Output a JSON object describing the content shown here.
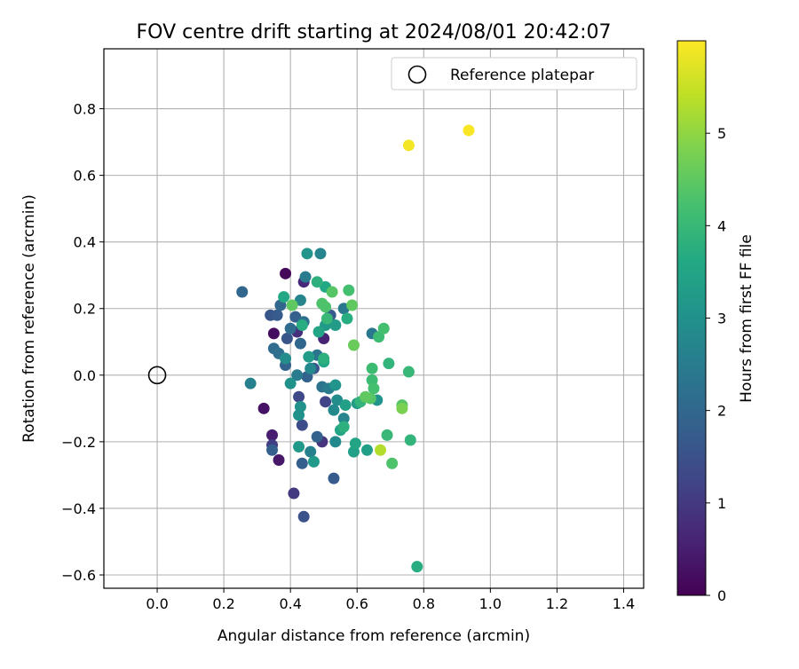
{
  "chart_data": {
    "type": "scatter",
    "title": "FOV centre drift starting at 2024/08/01 20:42:07",
    "xlabel": "Angular distance from reference (arcmin)",
    "ylabel": "Rotation from reference (arcmin)",
    "xlim": [
      -0.16,
      1.46
    ],
    "ylim": [
      -0.64,
      0.98
    ],
    "xticks": [
      "0.0",
      "0.2",
      "0.4",
      "0.6",
      "0.8",
      "1.0",
      "1.2",
      "1.4"
    ],
    "xtick_values": [
      0.0,
      0.2,
      0.4,
      0.6,
      0.8,
      1.0,
      1.2,
      1.4
    ],
    "yticks": [
      "−0.6",
      "−0.4",
      "−0.2",
      "0.0",
      "0.2",
      "0.4",
      "0.6",
      "0.8"
    ],
    "ytick_values": [
      -0.6,
      -0.4,
      -0.2,
      0.0,
      0.2,
      0.4,
      0.6,
      0.8
    ],
    "grid": true,
    "legend": {
      "placement": "top-right",
      "entries": [
        {
          "label": "Reference platepar",
          "marker": "open-circle"
        }
      ]
    },
    "reference_point": {
      "x": 0.0,
      "y": 0.0
    },
    "colorbar": {
      "label": "Hours from first FF file",
      "colormap": "viridis",
      "range": [
        0,
        6
      ],
      "ticks": [
        "0",
        "1",
        "2",
        "3",
        "4",
        "5"
      ],
      "tick_values": [
        0,
        1,
        2,
        3,
        4,
        5
      ]
    },
    "points": [
      {
        "x": 0.385,
        "y": 0.305,
        "c": 0.1
      },
      {
        "x": 0.35,
        "y": 0.125,
        "c": 0.2
      },
      {
        "x": 0.32,
        "y": -0.1,
        "c": 0.3
      },
      {
        "x": 0.365,
        "y": -0.255,
        "c": 0.4
      },
      {
        "x": 0.345,
        "y": -0.18,
        "c": 0.5
      },
      {
        "x": 0.5,
        "y": 0.11,
        "c": 0.6
      },
      {
        "x": 0.44,
        "y": 0.28,
        "c": 0.7
      },
      {
        "x": 0.42,
        "y": 0.13,
        "c": 0.8
      },
      {
        "x": 0.495,
        "y": -0.2,
        "c": 0.9
      },
      {
        "x": 0.41,
        "y": -0.355,
        "c": 1.0
      },
      {
        "x": 0.345,
        "y": -0.21,
        "c": 1.1
      },
      {
        "x": 0.505,
        "y": -0.08,
        "c": 1.2
      },
      {
        "x": 0.425,
        "y": -0.065,
        "c": 1.3
      },
      {
        "x": 0.435,
        "y": -0.15,
        "c": 1.4
      },
      {
        "x": 0.44,
        "y": -0.425,
        "c": 1.5
      },
      {
        "x": 0.47,
        "y": 0.02,
        "c": 1.5
      },
      {
        "x": 0.34,
        "y": 0.18,
        "c": 1.6
      },
      {
        "x": 0.39,
        "y": 0.11,
        "c": 1.6
      },
      {
        "x": 0.52,
        "y": 0.18,
        "c": 1.7
      },
      {
        "x": 0.36,
        "y": 0.18,
        "c": 1.7
      },
      {
        "x": 0.53,
        "y": -0.31,
        "c": 1.7
      },
      {
        "x": 0.345,
        "y": -0.225,
        "c": 1.8
      },
      {
        "x": 0.415,
        "y": 0.175,
        "c": 1.8
      },
      {
        "x": 0.435,
        "y": -0.265,
        "c": 1.8
      },
      {
        "x": 0.48,
        "y": -0.185,
        "c": 1.9
      },
      {
        "x": 0.385,
        "y": 0.03,
        "c": 1.9
      },
      {
        "x": 0.45,
        "y": -0.005,
        "c": 1.9
      },
      {
        "x": 0.43,
        "y": 0.095,
        "c": 2.0
      },
      {
        "x": 0.255,
        "y": 0.25,
        "c": 2.0
      },
      {
        "x": 0.37,
        "y": 0.21,
        "c": 2.0
      },
      {
        "x": 0.4,
        "y": 0.14,
        "c": 2.1
      },
      {
        "x": 0.35,
        "y": 0.08,
        "c": 2.1
      },
      {
        "x": 0.44,
        "y": 0.16,
        "c": 2.2
      },
      {
        "x": 0.365,
        "y": 0.065,
        "c": 2.2
      },
      {
        "x": 0.48,
        "y": 0.06,
        "c": 2.3
      },
      {
        "x": 0.495,
        "y": -0.035,
        "c": 2.3
      },
      {
        "x": 0.56,
        "y": 0.2,
        "c": 2.4
      },
      {
        "x": 0.645,
        "y": 0.125,
        "c": 2.4
      },
      {
        "x": 0.445,
        "y": 0.295,
        "c": 2.5
      },
      {
        "x": 0.42,
        "y": 0.0,
        "c": 2.5
      },
      {
        "x": 0.515,
        "y": -0.04,
        "c": 2.5
      },
      {
        "x": 0.46,
        "y": -0.23,
        "c": 2.6
      },
      {
        "x": 0.28,
        "y": -0.025,
        "c": 2.6
      },
      {
        "x": 0.49,
        "y": 0.365,
        "c": 2.7
      },
      {
        "x": 0.43,
        "y": 0.225,
        "c": 2.7
      },
      {
        "x": 0.56,
        "y": -0.13,
        "c": 2.7
      },
      {
        "x": 0.53,
        "y": -0.105,
        "c": 2.8
      },
      {
        "x": 0.535,
        "y": -0.2,
        "c": 2.8
      },
      {
        "x": 0.46,
        "y": 0.02,
        "c": 2.8
      },
      {
        "x": 0.385,
        "y": 0.05,
        "c": 2.9
      },
      {
        "x": 0.54,
        "y": -0.075,
        "c": 2.9
      },
      {
        "x": 0.425,
        "y": -0.12,
        "c": 3.0
      },
      {
        "x": 0.43,
        "y": -0.095,
        "c": 3.0
      },
      {
        "x": 0.4,
        "y": -0.025,
        "c": 3.0
      },
      {
        "x": 0.45,
        "y": 0.365,
        "c": 3.1
      },
      {
        "x": 0.535,
        "y": -0.03,
        "c": 3.1
      },
      {
        "x": 0.66,
        "y": -0.075,
        "c": 3.1
      },
      {
        "x": 0.47,
        "y": -0.26,
        "c": 3.2
      },
      {
        "x": 0.425,
        "y": -0.215,
        "c": 3.2
      },
      {
        "x": 0.505,
        "y": 0.15,
        "c": 3.2
      },
      {
        "x": 0.6,
        "y": -0.085,
        "c": 3.3
      },
      {
        "x": 0.535,
        "y": 0.15,
        "c": 3.3
      },
      {
        "x": 0.455,
        "y": 0.055,
        "c": 3.3
      },
      {
        "x": 0.59,
        "y": -0.23,
        "c": 3.4
      },
      {
        "x": 0.63,
        "y": -0.225,
        "c": 3.4
      },
      {
        "x": 0.565,
        "y": -0.09,
        "c": 3.4
      },
      {
        "x": 0.595,
        "y": -0.205,
        "c": 3.5
      },
      {
        "x": 0.55,
        "y": -0.165,
        "c": 3.5
      },
      {
        "x": 0.485,
        "y": 0.13,
        "c": 3.5
      },
      {
        "x": 0.38,
        "y": 0.235,
        "c": 3.6
      },
      {
        "x": 0.5,
        "y": 0.04,
        "c": 3.6
      },
      {
        "x": 0.505,
        "y": 0.265,
        "c": 3.6
      },
      {
        "x": 0.78,
        "y": -0.575,
        "c": 3.7
      },
      {
        "x": 0.57,
        "y": 0.17,
        "c": 3.7
      },
      {
        "x": 0.435,
        "y": 0.15,
        "c": 3.7
      },
      {
        "x": 0.56,
        "y": -0.155,
        "c": 3.8
      },
      {
        "x": 0.48,
        "y": 0.28,
        "c": 3.8
      },
      {
        "x": 0.5,
        "y": 0.05,
        "c": 3.8
      },
      {
        "x": 0.76,
        "y": -0.195,
        "c": 3.9
      },
      {
        "x": 0.61,
        "y": -0.08,
        "c": 3.9
      },
      {
        "x": 0.695,
        "y": 0.035,
        "c": 3.9
      },
      {
        "x": 0.51,
        "y": 0.17,
        "c": 4.0
      },
      {
        "x": 0.755,
        "y": 0.01,
        "c": 4.0
      },
      {
        "x": 0.69,
        "y": -0.18,
        "c": 4.0
      },
      {
        "x": 0.645,
        "y": 0.02,
        "c": 4.1
      },
      {
        "x": 0.645,
        "y": -0.015,
        "c": 4.1
      },
      {
        "x": 0.665,
        "y": 0.115,
        "c": 4.1
      },
      {
        "x": 0.575,
        "y": 0.255,
        "c": 4.2
      },
      {
        "x": 0.65,
        "y": -0.04,
        "c": 4.2
      },
      {
        "x": 0.68,
        "y": 0.14,
        "c": 4.2
      },
      {
        "x": 0.505,
        "y": 0.205,
        "c": 4.3
      },
      {
        "x": 0.495,
        "y": 0.215,
        "c": 4.3
      },
      {
        "x": 0.705,
        "y": -0.265,
        "c": 4.3
      },
      {
        "x": 0.525,
        "y": 0.25,
        "c": 4.4
      },
      {
        "x": 0.735,
        "y": -0.09,
        "c": 4.4
      },
      {
        "x": 0.64,
        "y": -0.07,
        "c": 4.4
      },
      {
        "x": 0.585,
        "y": 0.21,
        "c": 4.5
      },
      {
        "x": 0.625,
        "y": -0.065,
        "c": 4.5
      },
      {
        "x": 0.405,
        "y": 0.21,
        "c": 4.5
      },
      {
        "x": 0.59,
        "y": 0.09,
        "c": 4.6
      },
      {
        "x": 0.735,
        "y": -0.1,
        "c": 4.8
      },
      {
        "x": 0.67,
        "y": -0.225,
        "c": 5.3
      },
      {
        "x": 0.755,
        "y": 0.69,
        "c": 5.9
      },
      {
        "x": 0.935,
        "y": 0.735,
        "c": 5.95
      }
    ]
  }
}
